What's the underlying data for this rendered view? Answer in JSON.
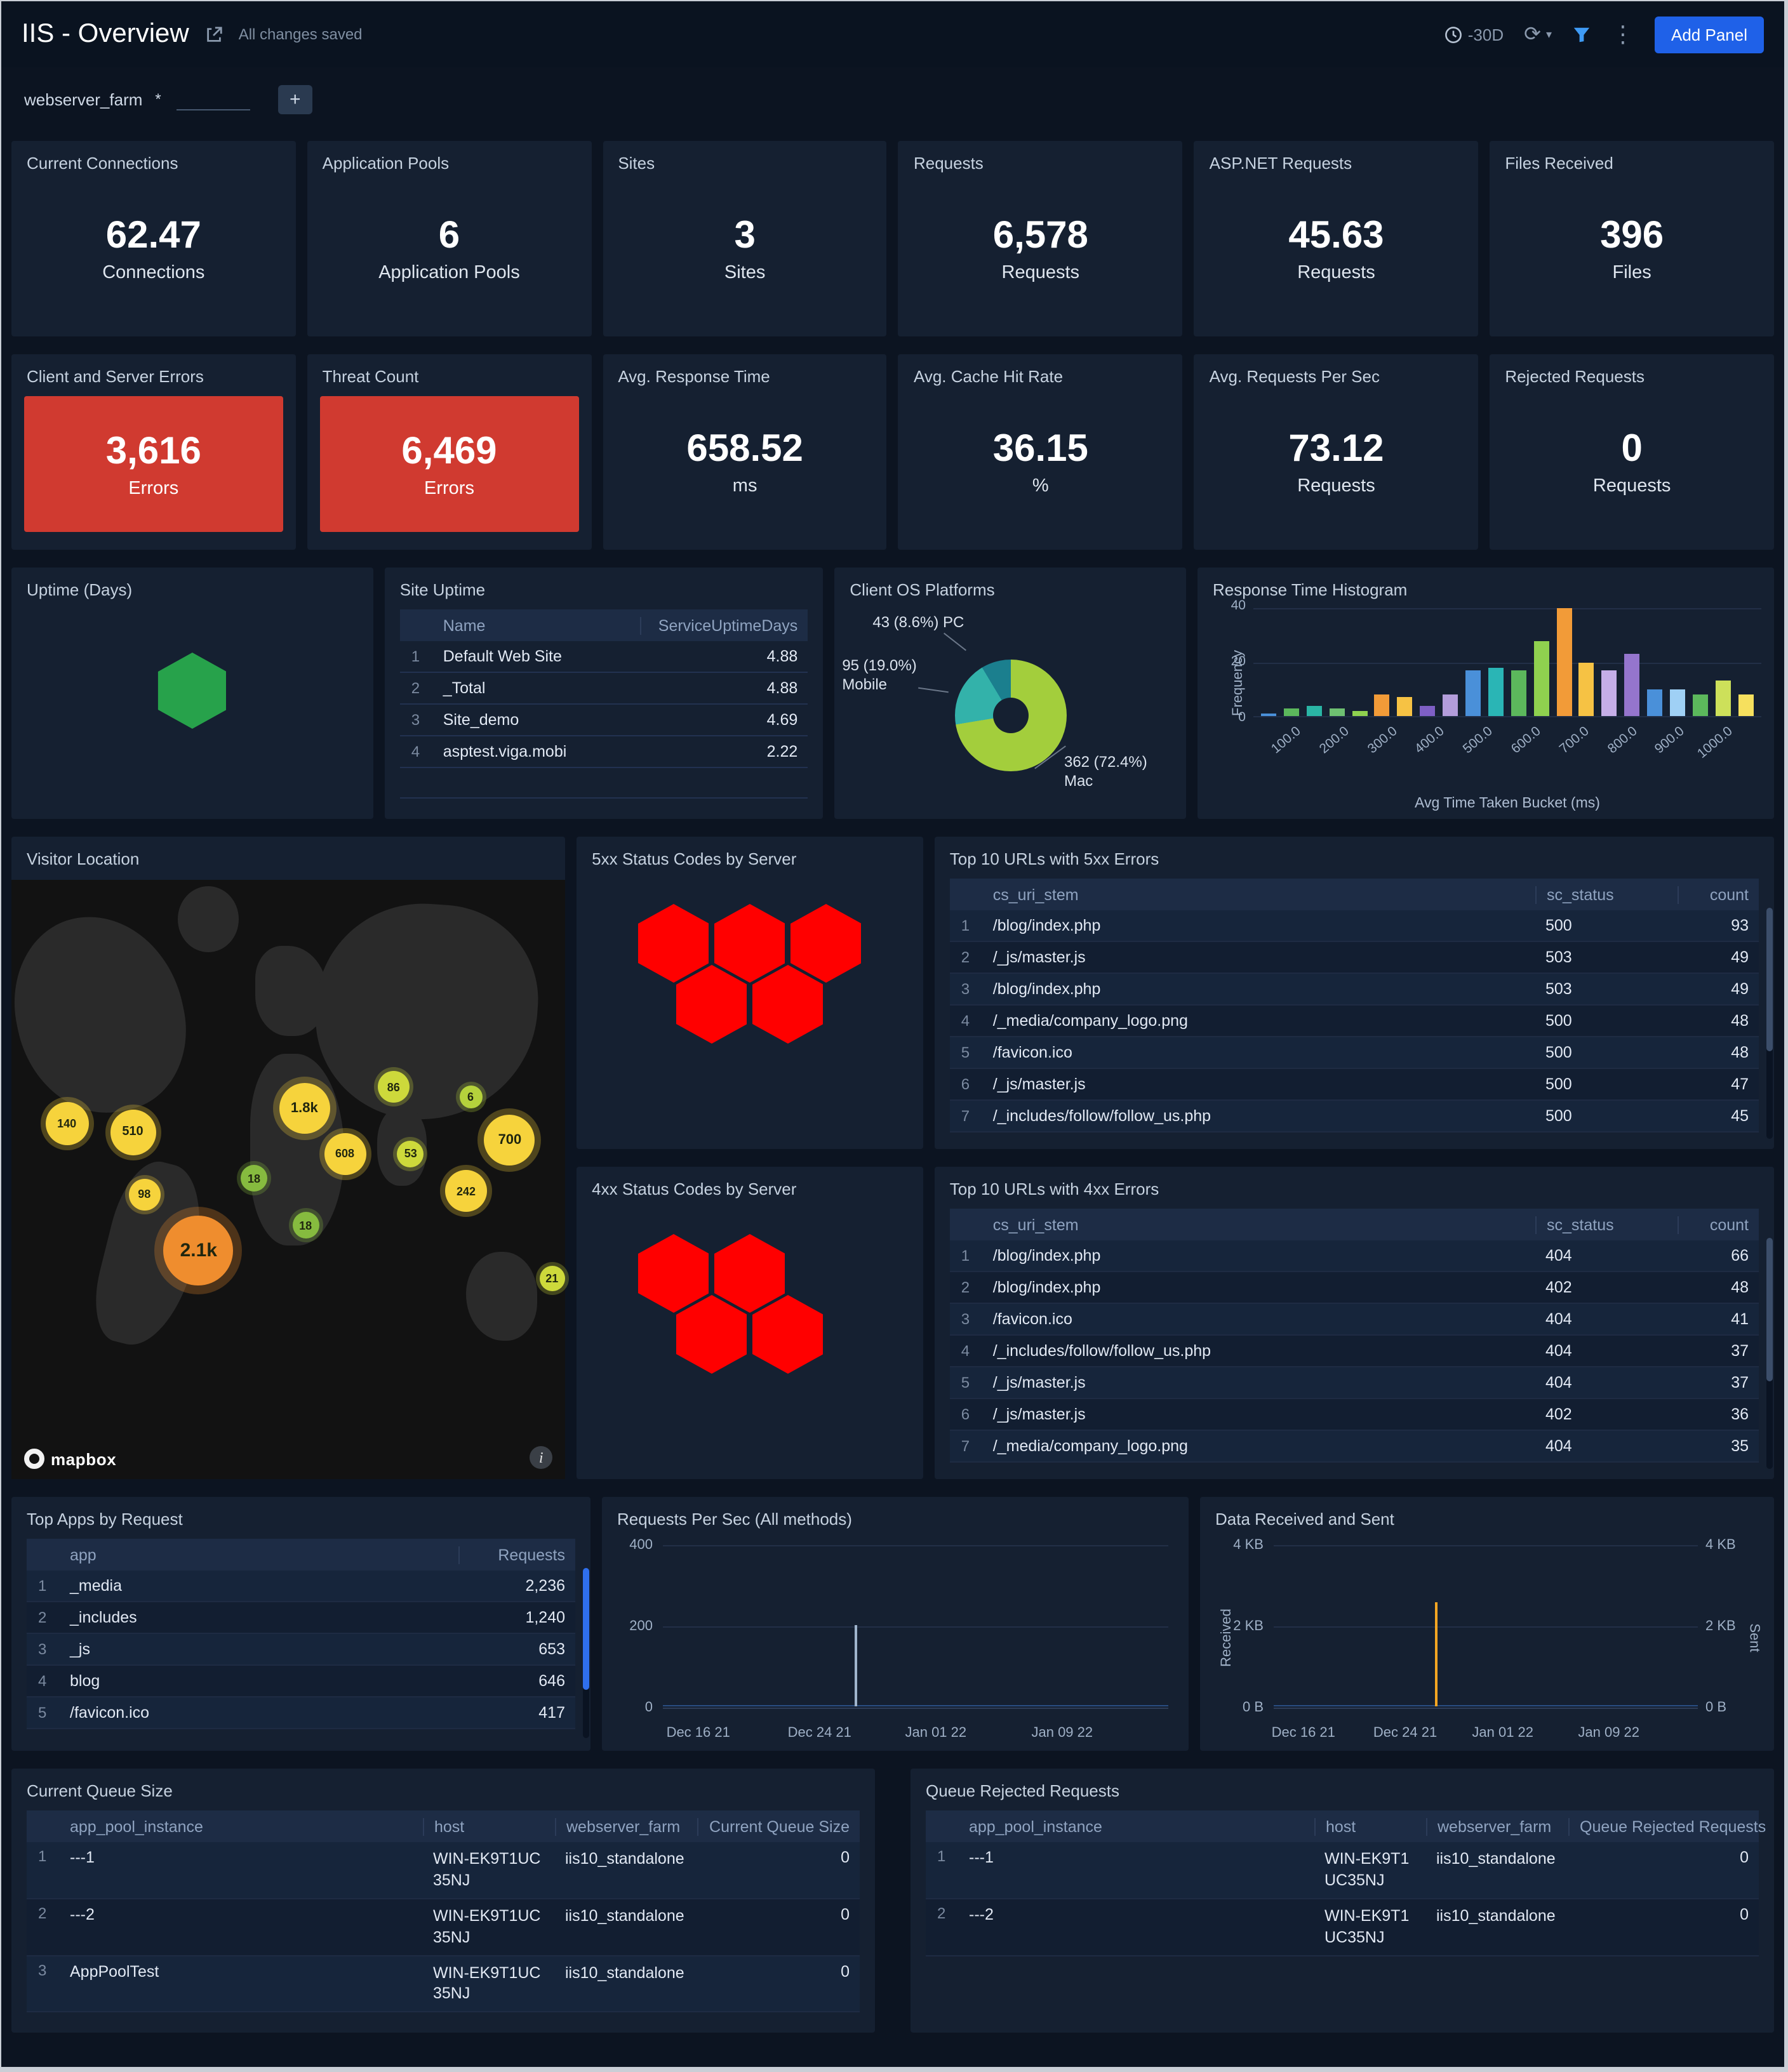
{
  "header": {
    "title": "IIS - Overview",
    "saved_text": "All changes saved",
    "time_range": "-30D",
    "add_panel_label": "Add Panel"
  },
  "filter": {
    "name": "webserver_farm",
    "operator": "*",
    "value": ""
  },
  "stat_panels": [
    {
      "title": "Current Connections",
      "value": "62.47",
      "unit": "Connections",
      "alert": false
    },
    {
      "title": "Application Pools",
      "value": "6",
      "unit": "Application Pools",
      "alert": false
    },
    {
      "title": "Sites",
      "value": "3",
      "unit": "Sites",
      "alert": false
    },
    {
      "title": "Requests",
      "value": "6,578",
      "unit": "Requests",
      "alert": false
    },
    {
      "title": "ASP.NET Requests",
      "value": "45.63",
      "unit": "Requests",
      "alert": false
    },
    {
      "title": "Files Received",
      "value": "396",
      "unit": "Files",
      "alert": false
    },
    {
      "title": "Client and Server Errors",
      "value": "3,616",
      "unit": "Errors",
      "alert": true
    },
    {
      "title": "Threat Count",
      "value": "6,469",
      "unit": "Errors",
      "alert": true
    },
    {
      "title": "Avg. Response Time",
      "value": "658.52",
      "unit": "ms",
      "alert": false
    },
    {
      "title": "Avg. Cache Hit Rate",
      "value": "36.15",
      "unit": "%",
      "alert": false
    },
    {
      "title": "Avg. Requests Per Sec",
      "value": "73.12",
      "unit": "Requests",
      "alert": false
    },
    {
      "title": "Rejected Requests",
      "value": "0",
      "unit": "Requests",
      "alert": false
    }
  ],
  "panels": {
    "uptime": {
      "title": "Uptime (Days)",
      "hex_color": "#27a24b"
    },
    "site_uptime": {
      "title": "Site Uptime",
      "columns": [
        "Name",
        "ServiceUptimeDays"
      ],
      "rows": [
        [
          "1",
          "Default Web Site",
          "4.88"
        ],
        [
          "2",
          "_Total",
          "4.88"
        ],
        [
          "3",
          "Site_demo",
          "4.69"
        ],
        [
          "4",
          "asptest.viga.mobi",
          "2.22"
        ]
      ]
    },
    "client_os": {
      "title": "Client OS Platforms",
      "chart_data": {
        "type": "pie",
        "slices": [
          {
            "label": "Mac",
            "value": 362,
            "pct": 72.4,
            "color": "#a3ce3c",
            "annotation": "362 (72.4%) Mac"
          },
          {
            "label": "Mobile",
            "value": 95,
            "pct": 19.0,
            "color": "#33b2aa",
            "annotation": "95 (19.0%) Mobile"
          },
          {
            "label": "PC",
            "value": 43,
            "pct": 8.6,
            "color": "#1b7f8e",
            "annotation": "43 (8.6%) PC"
          }
        ]
      }
    },
    "histogram": {
      "title": "Response Time Histogram",
      "chart_data": {
        "type": "bar",
        "xlabel": "Avg Time Taken Bucket (ms)",
        "ylabel": "Frequency",
        "ylim": [
          0,
          40
        ],
        "yticks": [
          0,
          20,
          40
        ],
        "xticks": [
          "100.0",
          "200.0",
          "300.0",
          "400.0",
          "500.0",
          "600.0",
          "700.0",
          "800.0",
          "900.0",
          "1000.0"
        ],
        "bars": [
          {
            "v": 1,
            "c": "#4a90d9"
          },
          {
            "v": 3,
            "c": "#5cb85c"
          },
          {
            "v": 4,
            "c": "#2ab5a5"
          },
          {
            "v": 3,
            "c": "#6ec071"
          },
          {
            "v": 2,
            "c": "#8fd14f"
          },
          {
            "v": 8,
            "c": "#f29b38"
          },
          {
            "v": 7,
            "c": "#f6c244"
          },
          {
            "v": 4,
            "c": "#7e5fc5"
          },
          {
            "v": 8,
            "c": "#b39ddb"
          },
          {
            "v": 17,
            "c": "#4a90d9"
          },
          {
            "v": 18,
            "c": "#2ab5b5"
          },
          {
            "v": 17,
            "c": "#5cb85c"
          },
          {
            "v": 28,
            "c": "#8fd14f"
          },
          {
            "v": 40,
            "c": "#f29b38"
          },
          {
            "v": 20,
            "c": "#f6c244"
          },
          {
            "v": 17,
            "c": "#c5aee8"
          },
          {
            "v": 23,
            "c": "#9575cd"
          },
          {
            "v": 10,
            "c": "#4a90d9"
          },
          {
            "v": 10,
            "c": "#9fd0f5"
          },
          {
            "v": 8,
            "c": "#5cb85c"
          },
          {
            "v": 13,
            "c": "#cde05a"
          },
          {
            "v": 8,
            "c": "#f6e05e"
          }
        ]
      }
    },
    "visitor_location": {
      "title": "Visitor Location",
      "attribution": "mapbox",
      "bubbles": [
        {
          "label": "140",
          "x": 10,
          "y": 40.7,
          "size": 34,
          "color": "#f6d33c"
        },
        {
          "label": "510",
          "x": 21.9,
          "y": 42.1,
          "size": 36,
          "color": "#f6d33c"
        },
        {
          "label": "98",
          "x": 24,
          "y": 52.5,
          "size": 25,
          "color": "#f6d33c"
        },
        {
          "label": "2.1k",
          "x": 33.8,
          "y": 61.8,
          "size": 55,
          "color": "#ef8d2e"
        },
        {
          "label": "18",
          "x": 43.8,
          "y": 49.8,
          "size": 21,
          "color": "#86bb3f"
        },
        {
          "label": "1.8k",
          "x": 52.9,
          "y": 38.2,
          "size": 40,
          "color": "#f6d33c"
        },
        {
          "label": "608",
          "x": 60.2,
          "y": 45.7,
          "size": 33,
          "color": "#f6d33c"
        },
        {
          "label": "86",
          "x": 69,
          "y": 34.6,
          "size": 25,
          "color": "#cdd93b"
        },
        {
          "label": "53",
          "x": 72.1,
          "y": 45.7,
          "size": 21,
          "color": "#cdd93b"
        },
        {
          "label": "18",
          "x": 53.1,
          "y": 57.7,
          "size": 21,
          "color": "#86bb3f"
        },
        {
          "label": "242",
          "x": 82.1,
          "y": 52,
          "size": 33,
          "color": "#f6d33c"
        },
        {
          "label": "6",
          "x": 82.9,
          "y": 36.2,
          "size": 18,
          "color": "#b5d23c"
        },
        {
          "label": "700",
          "x": 90,
          "y": 43.4,
          "size": 40,
          "color": "#f6d33c"
        },
        {
          "label": "21",
          "x": 97.6,
          "y": 66.5,
          "size": 20,
          "color": "#cdd93b"
        }
      ]
    },
    "status5xx": {
      "title": "5xx Status Codes by Server",
      "hex_color": "#ff0000",
      "hex_count": 5
    },
    "status4xx": {
      "title": "4xx Status Codes by Server",
      "hex_color": "#ff0000",
      "hex_count": 4
    },
    "top5xx": {
      "title": "Top 10 URLs with 5xx Errors",
      "columns": [
        "cs_uri_stem",
        "sc_status",
        "count"
      ],
      "rows": [
        [
          "1",
          "/blog/index.php",
          "500",
          "93"
        ],
        [
          "2",
          "/_js/master.js",
          "503",
          "49"
        ],
        [
          "3",
          "/blog/index.php",
          "503",
          "49"
        ],
        [
          "4",
          "/_media/company_logo.png",
          "500",
          "48"
        ],
        [
          "5",
          "/favicon.ico",
          "500",
          "48"
        ],
        [
          "6",
          "/_js/master.js",
          "500",
          "47"
        ],
        [
          "7",
          "/_includes/follow/follow_us.php",
          "500",
          "45"
        ]
      ]
    },
    "top4xx": {
      "title": "Top 10 URLs with 4xx Errors",
      "columns": [
        "cs_uri_stem",
        "sc_status",
        "count"
      ],
      "rows": [
        [
          "1",
          "/blog/index.php",
          "404",
          "66"
        ],
        [
          "2",
          "/blog/index.php",
          "402",
          "48"
        ],
        [
          "3",
          "/favicon.ico",
          "404",
          "41"
        ],
        [
          "4",
          "/_includes/follow/follow_us.php",
          "404",
          "37"
        ],
        [
          "5",
          "/_js/master.js",
          "404",
          "37"
        ],
        [
          "6",
          "/_js/master.js",
          "402",
          "36"
        ],
        [
          "7",
          "/_media/company_logo.png",
          "404",
          "35"
        ]
      ]
    },
    "top_apps": {
      "title": "Top Apps by Request",
      "columns": [
        "app",
        "Requests"
      ],
      "rows": [
        [
          "1",
          "_media",
          "2,236"
        ],
        [
          "2",
          "_includes",
          "1,240"
        ],
        [
          "3",
          "_js",
          "653"
        ],
        [
          "4",
          "blog",
          "646"
        ],
        [
          "5",
          "/favicon.ico",
          "417"
        ]
      ]
    },
    "requests_per_sec": {
      "title": "Requests Per Sec (All methods)",
      "chart_data": {
        "type": "line",
        "ylim": [
          0,
          400
        ],
        "yticks": [
          "400",
          "200",
          "0"
        ],
        "x_ticks": [
          {
            "label": "Dec 16 21",
            "pct": 7
          },
          {
            "label": "Dec 24 21",
            "pct": 31
          },
          {
            "label": "Jan 01 22",
            "pct": 54
          },
          {
            "label": "Jan 09 22",
            "pct": 79
          }
        ],
        "spike": {
          "pct": 38,
          "value": 200,
          "height_pct": 50,
          "color": "#9fb4cc"
        },
        "baseline_color": "#3a75c4"
      }
    },
    "data_received_sent": {
      "title": "Data Received and Sent",
      "chart_data": {
        "type": "line",
        "left_axis": {
          "label": "Received",
          "ticks": [
            "4 KB",
            "2 KB",
            "0 B"
          ]
        },
        "right_axis": {
          "label": "Sent",
          "ticks": [
            "4 KB",
            "2 KB",
            "0 B"
          ]
        },
        "x_ticks": [
          {
            "label": "Dec 16 21",
            "pct": 7
          },
          {
            "label": "Dec 24 21",
            "pct": 31
          },
          {
            "label": "Jan 01 22",
            "pct": 54
          },
          {
            "label": "Jan 09 22",
            "pct": 79
          }
        ],
        "spike": {
          "pct": 38,
          "value": "2.6 KB",
          "height_pct": 64,
          "color": "#f5a623"
        },
        "baseline_color": "#3a75c4"
      }
    },
    "current_queue": {
      "title": "Current Queue Size",
      "columns": [
        "app_pool_instance",
        "host",
        "webserver_farm",
        "Current Queue Size"
      ],
      "rows": [
        [
          "1",
          "---1",
          "WIN-EK9T1UC35NJ",
          "iis10_standalone",
          "0"
        ],
        [
          "2",
          "---2",
          "WIN-EK9T1UC35NJ",
          "iis10_standalone",
          "0"
        ],
        [
          "3",
          "AppPoolTest",
          "WIN-EK9T1UC35NJ",
          "iis10_standalone",
          "0"
        ]
      ]
    },
    "queue_rejected": {
      "title": "Queue Rejected Requests",
      "columns": [
        "app_pool_instance",
        "host",
        "webserver_farm",
        "Queue Rejected Requests"
      ],
      "rows": [
        [
          "1",
          "---1",
          "WIN-EK9T1UC35NJ",
          "iis10_standalone",
          "0"
        ],
        [
          "2",
          "---2",
          "WIN-EK9T1UC35NJ",
          "iis10_standalone",
          "0"
        ]
      ]
    }
  }
}
